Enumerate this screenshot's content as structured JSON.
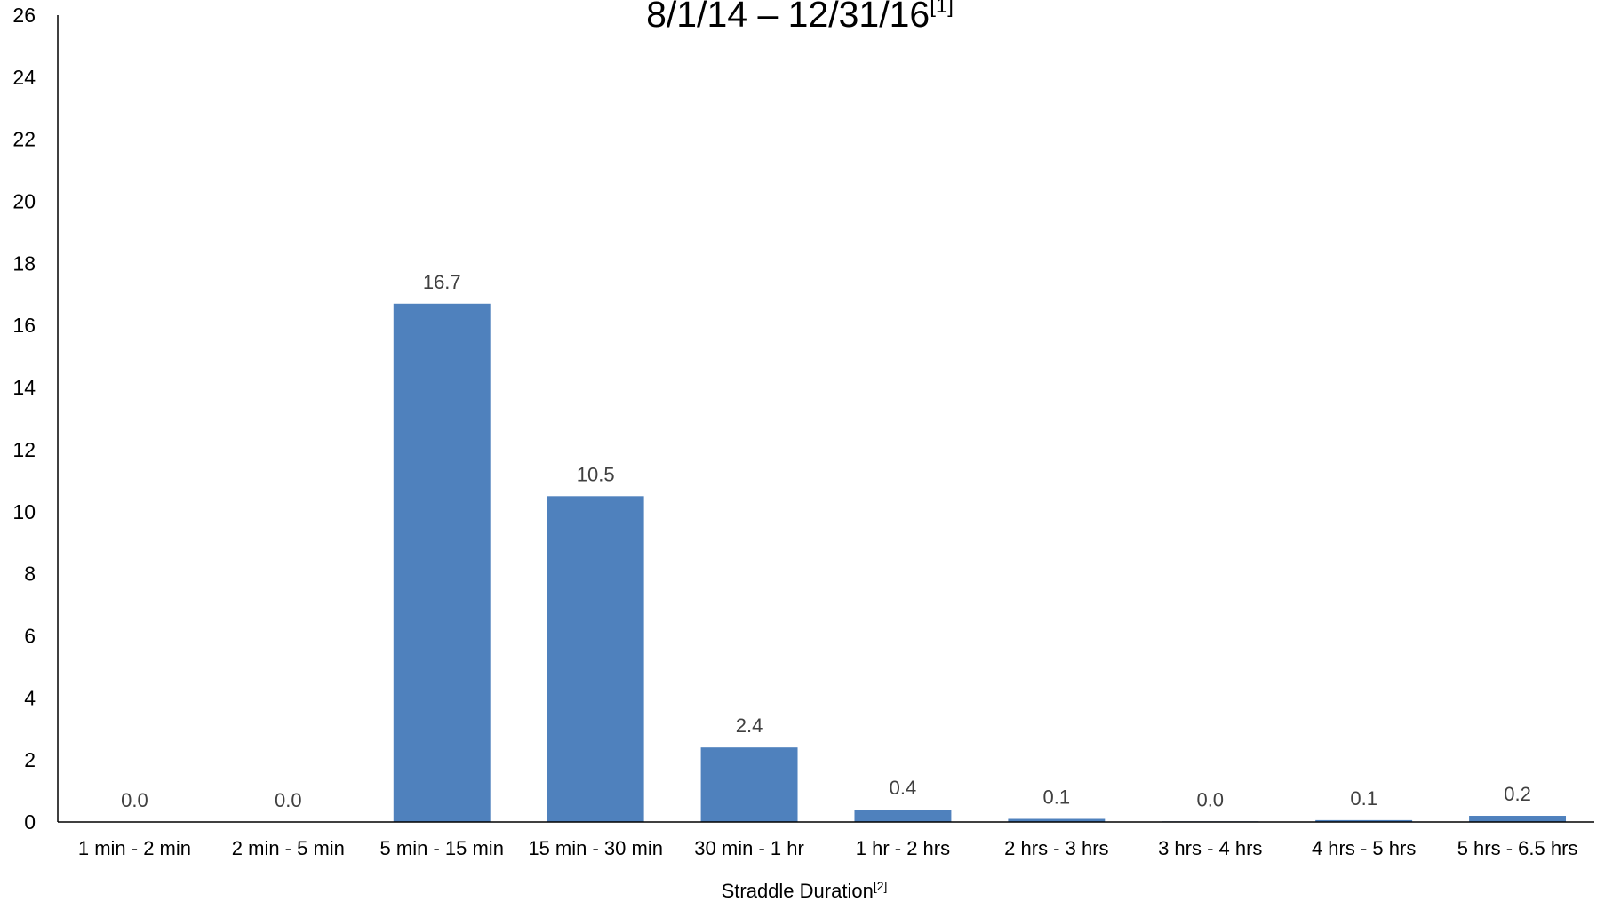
{
  "chart_data": {
    "type": "bar",
    "title": "8/1/14 – 12/31/16",
    "title_note": "[1]",
    "x_label": "Straddle Duration",
    "x_label_note": "[2]",
    "categories": [
      "1 min - 2 min",
      "2 min - 5 min",
      "5 min - 15 min",
      "15 min - 30 min",
      "30 min - 1 hr",
      "1 hr - 2 hrs",
      "2 hrs - 3 hrs",
      "3 hrs - 4 hrs",
      "4 hrs - 5 hrs",
      "5 hrs - 6.5 hrs"
    ],
    "values": [
      0,
      0,
      16.7,
      10.5,
      2.4,
      0.4,
      0.1,
      0.02,
      0.06,
      0.2
    ],
    "value_labels": [
      "0.0",
      "0.0",
      "16.7",
      "10.5",
      "2.4",
      "0.4",
      "0.1",
      "0.0",
      "0.1",
      "0.2"
    ],
    "color": "#4f81bd",
    "ylim": [
      0,
      26
    ],
    "yticks": [
      0,
      2,
      4,
      6,
      8,
      10,
      12,
      14,
      16,
      18,
      20,
      22,
      24,
      26
    ],
    "grid": false
  }
}
